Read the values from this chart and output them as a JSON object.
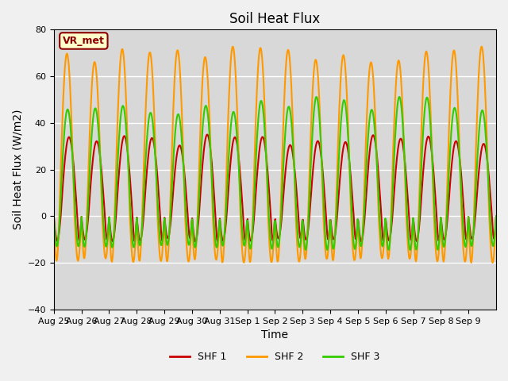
{
  "title": "Soil Heat Flux",
  "ylabel": "Soil Heat Flux (W/m2)",
  "xlabel": "Time",
  "ylim": [
    -40,
    80
  ],
  "yticks": [
    -40,
    -20,
    0,
    20,
    40,
    60,
    80
  ],
  "x_labels": [
    "Aug 25",
    "Aug 26",
    "Aug 27",
    "Aug 28",
    "Aug 29",
    "Aug 30",
    "Aug 31",
    "Sep 1",
    "Sep 2",
    "Sep 3",
    "Sep 4",
    "Sep 5",
    "Sep 6",
    "Sep 7",
    "Sep 8",
    "Sep 9"
  ],
  "colors": {
    "SHF 1": "#cc0000",
    "SHF 2": "#ff9900",
    "SHF 3": "#33cc00"
  },
  "annotation_text": "VR_met",
  "annotation_color": "#8B0000",
  "annotation_bg": "#ffffcc",
  "bg_color": "#d8d8d8",
  "grid_color": "#ffffff",
  "n_days": 16,
  "points_per_day": 48,
  "shf1_day_peak": 37,
  "shf1_night_min": -11,
  "shf2_day_peak": 73,
  "shf2_night_min": -20,
  "shf3_day_peak": 53,
  "shf3_night_min": -15,
  "line_width": 1.5,
  "title_fontsize": 12,
  "label_fontsize": 10,
  "tick_fontsize": 8
}
